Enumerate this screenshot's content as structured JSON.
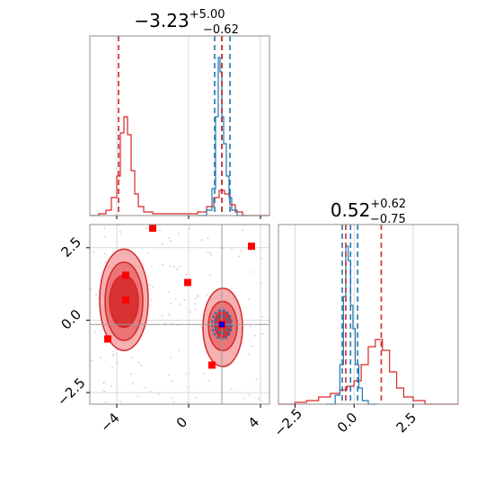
{
  "chart_data": {
    "type": "corner",
    "colors": {
      "red": "#d62728",
      "blue": "#1f77b4",
      "marker": "#ff0000",
      "marker_blue": "#0000ff",
      "grid": "#d9d9d9",
      "frame": "#8c8c8c"
    },
    "grid": true,
    "panels": [
      {
        "id": "hist_x",
        "type": "histogram",
        "title": {
          "main": "−3.23",
          "sup": "+5.00",
          "sub": "−0.62"
        },
        "xlim": [
          -5.5,
          4.5
        ],
        "xticks": [
          -4,
          0,
          4
        ],
        "show_tick_labels": false,
        "vlines_red": [
          -3.9,
          1.85
        ],
        "vlines_blue": [
          1.45,
          1.85,
          2.3
        ],
        "series": [
          {
            "name": "",
            "color": "#d62728",
            "bins": [
              [
                -5.5,
                -5,
                0.0
              ],
              [
                -5,
                -4.6,
                0.01
              ],
              [
                -4.6,
                -4.3,
                0.03
              ],
              [
                -4.3,
                -4.0,
                0.1
              ],
              [
                -4.0,
                -3.8,
                0.22
              ],
              [
                -3.8,
                -3.6,
                0.46
              ],
              [
                -3.6,
                -3.4,
                0.55
              ],
              [
                -3.4,
                -3.2,
                0.45
              ],
              [
                -3.2,
                -3.0,
                0.25
              ],
              [
                -3.0,
                -2.8,
                0.12
              ],
              [
                -2.8,
                -2.5,
                0.05
              ],
              [
                -2.5,
                -2.0,
                0.02
              ],
              [
                -2.0,
                -1.0,
                0.01
              ],
              [
                -1.0,
                0.5,
                0.01
              ],
              [
                0.5,
                1.0,
                0.02
              ],
              [
                1.0,
                1.4,
                0.05
              ],
              [
                1.4,
                1.7,
                0.1
              ],
              [
                1.7,
                2.0,
                0.14
              ],
              [
                2.0,
                2.3,
                0.12
              ],
              [
                2.3,
                2.6,
                0.06
              ],
              [
                2.6,
                3.0,
                0.02
              ],
              [
                3.0,
                4.5,
                0.0
              ]
            ]
          },
          {
            "name": "",
            "color": "#1f77b4",
            "bins": [
              [
                0.5,
                1.0,
                0.0
              ],
              [
                1.0,
                1.3,
                0.03
              ],
              [
                1.3,
                1.5,
                0.15
              ],
              [
                1.5,
                1.65,
                0.55
              ],
              [
                1.65,
                1.75,
                0.88
              ],
              [
                1.75,
                1.85,
                0.8
              ],
              [
                1.85,
                1.95,
                0.55
              ],
              [
                1.95,
                2.1,
                0.4
              ],
              [
                2.1,
                2.25,
                0.22
              ],
              [
                2.25,
                2.4,
                0.1
              ],
              [
                2.4,
                2.7,
                0.03
              ],
              [
                2.7,
                3.2,
                0.0
              ]
            ]
          }
        ]
      },
      {
        "id": "scatter_xy",
        "type": "2d",
        "xlim": [
          -5.5,
          4.5
        ],
        "ylim": [
          -2.9,
          3.3
        ],
        "xticks": [
          -4,
          0,
          4
        ],
        "yticks": [
          -2.5,
          0.0,
          2.5
        ],
        "xtick_labels": [
          "−4",
          "0",
          "4"
        ],
        "ytick_labels": [
          "−2.5",
          "0.0",
          "2.5"
        ],
        "crosshair": {
          "x": 1.85,
          "y": -0.15
        },
        "red_contours": [
          {
            "cx": -3.6,
            "cy": 0.7,
            "rx": 1.35,
            "ry": 1.75,
            "level": "outer"
          },
          {
            "cx": -3.6,
            "cy": 0.65,
            "rx": 1.05,
            "ry": 1.35,
            "level": "mid"
          },
          {
            "cx": -3.6,
            "cy": 0.65,
            "rx": 0.8,
            "ry": 0.9,
            "level": "inner"
          },
          {
            "cx": 1.9,
            "cy": -0.25,
            "rx": 1.1,
            "ry": 1.35,
            "level": "outer"
          },
          {
            "cx": 1.9,
            "cy": -0.2,
            "rx": 0.8,
            "ry": 0.85,
            "level": "mid"
          },
          {
            "cx": 1.9,
            "cy": -0.15,
            "rx": 0.45,
            "ry": 0.45,
            "level": "inner"
          }
        ],
        "blue_contours": [
          {
            "cx": 1.85,
            "cy": -0.15,
            "rx": 0.55,
            "ry": 0.5
          },
          {
            "cx": 1.85,
            "cy": -0.15,
            "rx": 0.35,
            "ry": 0.3
          }
        ],
        "markers": [
          [
            -2.0,
            3.75
          ],
          [
            3.5,
            2.55
          ],
          [
            -3.5,
            1.55
          ],
          [
            -0.05,
            1.3
          ],
          [
            -3.5,
            0.7
          ],
          [
            -4.5,
            -0.65
          ],
          [
            1.3,
            -1.55
          ],
          [
            1.85,
            -0.15
          ]
        ],
        "marker_blue": [
          1.85,
          -0.15
        ]
      },
      {
        "id": "hist_y",
        "type": "histogram",
        "title": {
          "main": "0.52",
          "sup": "+0.62",
          "sub": "−0.75"
        },
        "xlim": [
          -3.2,
          4.4
        ],
        "xticks": [
          -2.5,
          0.0,
          2.5
        ],
        "xtick_labels": [
          "−2.5",
          "0.0",
          "2.5"
        ],
        "vlines_red": [
          -0.35,
          1.15
        ],
        "vlines_blue": [
          -0.5,
          -0.15,
          0.15
        ],
        "series": [
          {
            "name": "",
            "color": "#d62728",
            "bins": [
              [
                -3.2,
                -2.5,
                0.0
              ],
              [
                -2.5,
                -2.0,
                0.01
              ],
              [
                -2.0,
                -1.5,
                0.02
              ],
              [
                -1.5,
                -1.0,
                0.04
              ],
              [
                -1.0,
                -0.6,
                0.06
              ],
              [
                -0.6,
                -0.3,
                0.08
              ],
              [
                -0.3,
                0.0,
                0.1
              ],
              [
                0.0,
                0.3,
                0.13
              ],
              [
                0.3,
                0.6,
                0.22
              ],
              [
                0.6,
                0.9,
                0.32
              ],
              [
                0.9,
                1.2,
                0.36
              ],
              [
                1.2,
                1.5,
                0.3
              ],
              [
                1.5,
                1.8,
                0.18
              ],
              [
                1.8,
                2.1,
                0.09
              ],
              [
                2.1,
                2.5,
                0.04
              ],
              [
                2.5,
                3.0,
                0.02
              ],
              [
                3.0,
                4.4,
                0.0
              ]
            ]
          },
          {
            "name": "",
            "color": "#1f77b4",
            "bins": [
              [
                -1.2,
                -0.8,
                0.0
              ],
              [
                -0.8,
                -0.6,
                0.05
              ],
              [
                -0.6,
                -0.45,
                0.22
              ],
              [
                -0.45,
                -0.35,
                0.6
              ],
              [
                -0.35,
                -0.25,
                0.88
              ],
              [
                -0.25,
                -0.15,
                0.8
              ],
              [
                -0.15,
                -0.05,
                0.55
              ],
              [
                -0.05,
                0.05,
                0.42
              ],
              [
                0.05,
                0.2,
                0.22
              ],
              [
                0.2,
                0.35,
                0.09
              ],
              [
                0.35,
                0.6,
                0.02
              ],
              [
                0.6,
                1.0,
                0.0
              ]
            ]
          }
        ]
      }
    ]
  }
}
